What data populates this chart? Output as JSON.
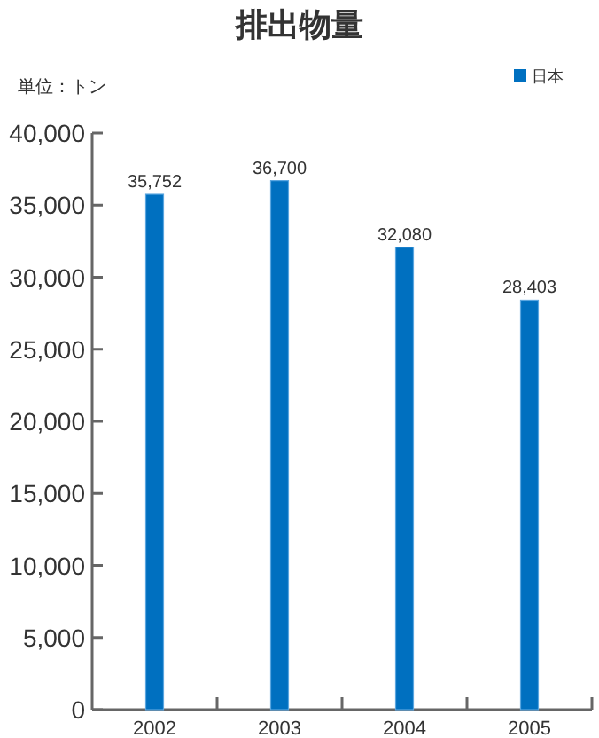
{
  "chart_data": {
    "type": "bar",
    "title": "排出物量",
    "annotations": [
      "単位：トン"
    ],
    "categories": [
      "2002",
      "2003",
      "2004",
      "2005"
    ],
    "series": [
      {
        "name": "日本",
        "color": "#0070c0",
        "values": [
          35752,
          36700,
          32080,
          28403
        ],
        "value_labels": [
          "35,752",
          "36,700",
          "32,080",
          "28,403"
        ]
      }
    ],
    "ylim": [
      0,
      40000
    ],
    "yticks": [
      {
        "value": 0,
        "label": "0"
      },
      {
        "value": 5000,
        "label": "5,000"
      },
      {
        "value": 10000,
        "label": "10,000"
      },
      {
        "value": 15000,
        "label": "15,000"
      },
      {
        "value": 20000,
        "label": "20,000"
      },
      {
        "value": 25000,
        "label": "25,000"
      },
      {
        "value": 30000,
        "label": "30,000"
      },
      {
        "value": 35000,
        "label": "35,000"
      },
      {
        "value": 40000,
        "label": "40,000"
      }
    ],
    "grid": false,
    "legend": "top right"
  }
}
